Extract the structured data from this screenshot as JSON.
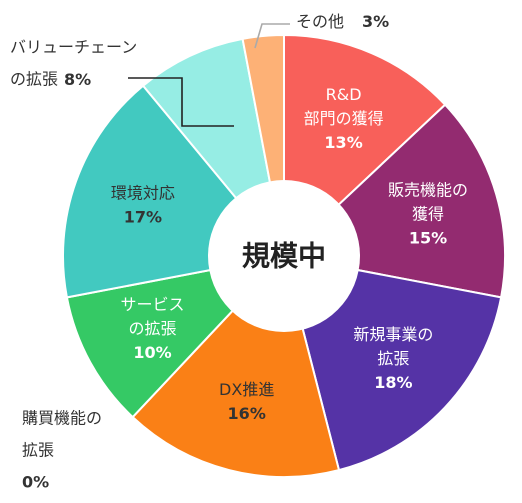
{
  "chart_data": {
    "type": "pie",
    "donut_center_text": "規模中",
    "slices": [
      {
        "key": "rd",
        "label_lines": [
          "R&D",
          "部門の獲得"
        ],
        "value": 13,
        "value_text": "13%",
        "color": "#F8605A",
        "label_color": "#ffffff",
        "label_position": "inside"
      },
      {
        "key": "sales",
        "label_lines": [
          "販売機能の",
          "獲得"
        ],
        "value": 15,
        "value_text": "15%",
        "color": "#932B70",
        "label_color": "#ffffff",
        "label_position": "inside"
      },
      {
        "key": "newbiz",
        "label_lines": [
          "新規事業の",
          "拡張"
        ],
        "value": 18,
        "value_text": "18%",
        "color": "#5533A6",
        "label_color": "#ffffff",
        "label_position": "inside"
      },
      {
        "key": "dx",
        "label_lines": [
          "DX推進"
        ],
        "value": 16,
        "value_text": "16%",
        "color": "#FA8016",
        "label_color": "#333333",
        "label_position": "inside"
      },
      {
        "key": "purchase",
        "label_lines": [
          "購買機能の",
          "拡張"
        ],
        "value": 0,
        "value_text": "0%",
        "color": "#2E86C1",
        "label_color": "#333333",
        "label_position": "outside"
      },
      {
        "key": "service",
        "label_lines": [
          "サービス",
          "の拡張"
        ],
        "value": 10,
        "value_text": "10%",
        "color": "#35C965",
        "label_color": "#ffffff",
        "label_position": "inside"
      },
      {
        "key": "env",
        "label_lines": [
          "環境対応"
        ],
        "value": 17,
        "value_text": "17%",
        "color": "#42C9C0",
        "label_color": "#333333",
        "label_position": "inside"
      },
      {
        "key": "value_chain",
        "label_lines": [
          "バリューチェーン",
          "の拡張"
        ],
        "value": 8,
        "value_text": "8%",
        "color": "#96EDE4",
        "label_color": "#333333",
        "label_position": "outside"
      },
      {
        "key": "other",
        "label_lines": [
          "その他"
        ],
        "value": 3,
        "value_text": "3%",
        "color": "#FDB176",
        "label_color": "#333333",
        "label_position": "outside"
      }
    ]
  }
}
